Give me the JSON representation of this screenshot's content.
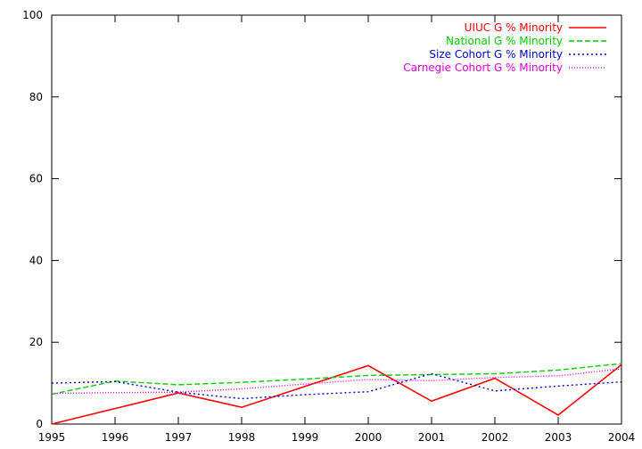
{
  "chart_data": {
    "type": "line",
    "title": "",
    "xlabel": "",
    "ylabel": "",
    "x": [
      1995,
      1996,
      1997,
      1998,
      1999,
      2000,
      2001,
      2002,
      2003,
      2004
    ],
    "xlim": [
      1995,
      2004
    ],
    "ylim": [
      0,
      100
    ],
    "xticks": [
      "1995",
      "1996",
      "1997",
      "1998",
      "1999",
      "2000",
      "2001",
      "2002",
      "2003",
      "2004"
    ],
    "yticks": [
      "0",
      "20",
      "40",
      "60",
      "80",
      "100"
    ],
    "grid": false,
    "legend_position": "top-right",
    "series": [
      {
        "name": "UIUC G % Minority",
        "color": "#ff0000",
        "dash": "solid",
        "values": [
          0,
          3.8,
          7.6,
          4.1,
          9.2,
          14.3,
          5.6,
          11.2,
          2.2,
          14.5
        ]
      },
      {
        "name": "National G % Minority",
        "color": "#00cc00",
        "dash": "dashed",
        "values": [
          7.3,
          10.5,
          9.6,
          10.2,
          11.0,
          11.9,
          12.1,
          12.3,
          13.2,
          14.8
        ]
      },
      {
        "name": "Size Cohort G % Minority",
        "color": "#0000cc",
        "dash": "dotted",
        "values": [
          10.0,
          10.4,
          7.8,
          6.2,
          7.2,
          7.9,
          12.3,
          8.1,
          9.3,
          10.3
        ]
      },
      {
        "name": "Carnegie Cohort G % Minority",
        "color": "#dd00dd",
        "dash": "finedotted",
        "values": [
          7.5,
          7.7,
          7.8,
          8.6,
          9.8,
          10.9,
          10.6,
          11.4,
          11.8,
          13.5
        ]
      }
    ]
  }
}
